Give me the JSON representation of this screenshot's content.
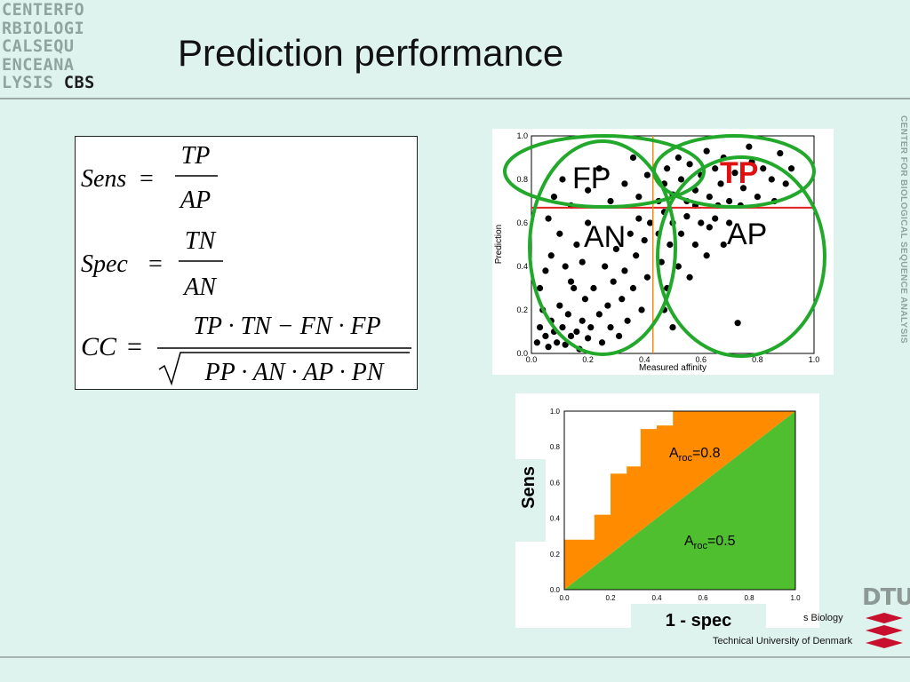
{
  "logo": {
    "lines": [
      "CENTERFO",
      "RBIOLOGI",
      "CALSEQU",
      "ENCEANA",
      "LYSIS "
    ],
    "cbs": "CBS"
  },
  "title": "Prediction performance",
  "side_text": "CENTER FOR BIOLOGICAL SEQUENCE ANALYSIS",
  "formulas": {
    "sens_lhs": "Sens",
    "sens_num": "TP",
    "sens_den": "AP",
    "spec_lhs": "Spec",
    "spec_num": "TN",
    "spec_den": "AN",
    "cc_lhs": "CC",
    "cc_num": "TP · TN − FN · FP",
    "cc_den": "PP · AN · AP · PN"
  },
  "scatter": {
    "xlabel": "Measured affinity",
    "ylabel": "Prediction",
    "ticks": [
      "0.0",
      "0.2",
      "0.4",
      "0.6",
      "0.8",
      "1.0"
    ],
    "region_labels": {
      "fp": "FP",
      "tp": "TP",
      "an": "AN",
      "ap": "AP"
    },
    "colors": {
      "threshold_h": "#e02020",
      "threshold_v": "#f08a10",
      "ellipse": "#22a82a",
      "tp_label": "#e01010"
    }
  },
  "roc": {
    "ticks": [
      "0.0",
      "0.2",
      "0.4",
      "0.6",
      "0.8",
      "1.0"
    ],
    "a_roc_curve": "=0.8",
    "a_roc_diag": "=0.5",
    "a_label": "A",
    "a_sub": "roc",
    "colors": {
      "orange": "#ff8c00",
      "green": "#4fbf30"
    }
  },
  "axis_labels": {
    "sens": "Sens",
    "spec": "1 - spec"
  },
  "footer": {
    "line1": "s Biology",
    "line2": "Technical University of Denmark"
  },
  "dtu_logo": "DTU",
  "chart_data": [
    {
      "type": "scatter",
      "xlabel": "Measured affinity",
      "ylabel": "Prediction",
      "xlim": [
        0,
        1
      ],
      "ylim": [
        0,
        1
      ],
      "threshold_x": 0.43,
      "threshold_y": 0.67,
      "points": [
        [
          0.02,
          0.05
        ],
        [
          0.03,
          0.12
        ],
        [
          0.04,
          0.2
        ],
        [
          0.05,
          0.08
        ],
        [
          0.06,
          0.03
        ],
        [
          0.07,
          0.15
        ],
        [
          0.08,
          0.1
        ],
        [
          0.09,
          0.05
        ],
        [
          0.1,
          0.22
        ],
        [
          0.11,
          0.12
        ],
        [
          0.12,
          0.04
        ],
        [
          0.13,
          0.18
        ],
        [
          0.14,
          0.08
        ],
        [
          0.15,
          0.3
        ],
        [
          0.16,
          0.1
        ],
        [
          0.17,
          0.02
        ],
        [
          0.18,
          0.15
        ],
        [
          0.19,
          0.25
        ],
        [
          0.2,
          0.07
        ],
        [
          0.21,
          0.12
        ],
        [
          0.03,
          0.3
        ],
        [
          0.05,
          0.38
        ],
        [
          0.07,
          0.45
        ],
        [
          0.1,
          0.55
        ],
        [
          0.12,
          0.4
        ],
        [
          0.14,
          0.33
        ],
        [
          0.16,
          0.5
        ],
        [
          0.18,
          0.42
        ],
        [
          0.2,
          0.6
        ],
        [
          0.22,
          0.3
        ],
        [
          0.24,
          0.18
        ],
        [
          0.25,
          0.05
        ],
        [
          0.26,
          0.4
        ],
        [
          0.27,
          0.22
        ],
        [
          0.28,
          0.12
        ],
        [
          0.29,
          0.33
        ],
        [
          0.3,
          0.48
        ],
        [
          0.31,
          0.08
        ],
        [
          0.32,
          0.25
        ],
        [
          0.33,
          0.38
        ],
        [
          0.34,
          0.15
        ],
        [
          0.35,
          0.55
        ],
        [
          0.36,
          0.3
        ],
        [
          0.37,
          0.45
        ],
        [
          0.38,
          0.62
        ],
        [
          0.39,
          0.2
        ],
        [
          0.4,
          0.52
        ],
        [
          0.41,
          0.35
        ],
        [
          0.42,
          0.6
        ],
        [
          0.06,
          0.62
        ],
        [
          0.08,
          0.72
        ],
        [
          0.11,
          0.8
        ],
        [
          0.14,
          0.68
        ],
        [
          0.2,
          0.75
        ],
        [
          0.24,
          0.85
        ],
        [
          0.28,
          0.7
        ],
        [
          0.33,
          0.78
        ],
        [
          0.38,
          0.72
        ],
        [
          0.41,
          0.82
        ],
        [
          0.36,
          0.9
        ],
        [
          0.45,
          0.55
        ],
        [
          0.46,
          0.42
        ],
        [
          0.47,
          0.65
        ],
        [
          0.48,
          0.3
        ],
        [
          0.49,
          0.5
        ],
        [
          0.5,
          0.6
        ],
        [
          0.52,
          0.4
        ],
        [
          0.53,
          0.55
        ],
        [
          0.55,
          0.63
        ],
        [
          0.56,
          0.35
        ],
        [
          0.58,
          0.5
        ],
        [
          0.6,
          0.6
        ],
        [
          0.62,
          0.45
        ],
        [
          0.63,
          0.58
        ],
        [
          0.65,
          0.62
        ],
        [
          0.68,
          0.5
        ],
        [
          0.7,
          0.6
        ],
        [
          0.73,
          0.14
        ],
        [
          0.47,
          0.2
        ],
        [
          0.5,
          0.12
        ],
        [
          0.45,
          0.7
        ],
        [
          0.47,
          0.78
        ],
        [
          0.48,
          0.85
        ],
        [
          0.5,
          0.73
        ],
        [
          0.52,
          0.9
        ],
        [
          0.53,
          0.8
        ],
        [
          0.55,
          0.7
        ],
        [
          0.56,
          0.87
        ],
        [
          0.58,
          0.75
        ],
        [
          0.6,
          0.82
        ],
        [
          0.62,
          0.93
        ],
        [
          0.63,
          0.72
        ],
        [
          0.65,
          0.85
        ],
        [
          0.67,
          0.78
        ],
        [
          0.68,
          0.9
        ],
        [
          0.7,
          0.7
        ],
        [
          0.72,
          0.83
        ],
        [
          0.75,
          0.76
        ],
        [
          0.78,
          0.88
        ],
        [
          0.8,
          0.72
        ],
        [
          0.82,
          0.85
        ],
        [
          0.85,
          0.8
        ],
        [
          0.88,
          0.92
        ],
        [
          0.9,
          0.78
        ],
        [
          0.92,
          0.85
        ],
        [
          0.74,
          0.68
        ],
        [
          0.66,
          0.68
        ],
        [
          0.58,
          0.68
        ],
        [
          0.77,
          0.95
        ],
        [
          0.86,
          0.7
        ]
      ]
    },
    {
      "type": "area",
      "xlabel": "1 - spec",
      "ylabel": "Sens",
      "xlim": [
        0,
        1
      ],
      "ylim": [
        0,
        1
      ],
      "series": [
        {
          "name": "A_roc=0.8",
          "x": [
            0,
            0,
            0.13,
            0.13,
            0.2,
            0.2,
            0.27,
            0.27,
            0.33,
            0.33,
            0.4,
            0.4,
            0.47,
            0.47,
            1.0
          ],
          "y": [
            0,
            0.28,
            0.28,
            0.42,
            0.42,
            0.65,
            0.65,
            0.69,
            0.69,
            0.9,
            0.9,
            0.92,
            0.92,
            1.0,
            1.0
          ]
        },
        {
          "name": "A_roc=0.5",
          "x": [
            0,
            1
          ],
          "y": [
            0,
            1
          ]
        }
      ]
    }
  ]
}
